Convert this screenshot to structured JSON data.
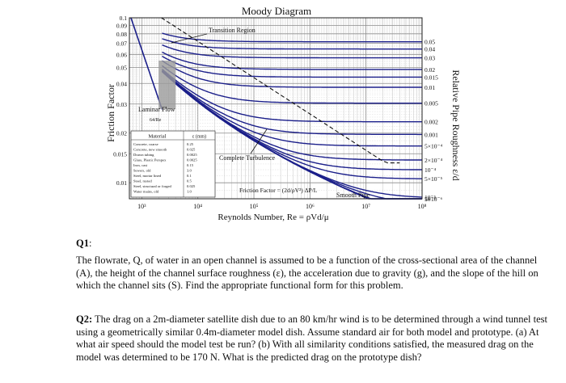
{
  "chart_data": {
    "type": "line",
    "title": "Moody Diagram",
    "xlabel": "Reynolds Number, Re = ρVd/μ",
    "ylabel": "Friction Factor",
    "right_label": "Relative Pipe Roughness ε/d",
    "x_scale": "log",
    "y_scale": "log",
    "xlim": [
      600,
      100000000
    ],
    "ylim": [
      0.008,
      0.1
    ],
    "x_ticks": [
      {
        "label": "10³",
        "value": 1000
      },
      {
        "label": "10⁴",
        "value": 10000
      },
      {
        "label": "10⁵",
        "value": 100000
      },
      {
        "label": "10⁶",
        "value": 1000000
      },
      {
        "label": "10⁷",
        "value": 10000000
      },
      {
        "label": "10⁸",
        "value": 100000000
      }
    ],
    "y_ticks": [
      {
        "label": "0.1",
        "value": 0.1
      },
      {
        "label": "0.09",
        "value": 0.09
      },
      {
        "label": "0.08",
        "value": 0.08
      },
      {
        "label": "0.07",
        "value": 0.07
      },
      {
        "label": "0.06",
        "value": 0.06
      },
      {
        "label": "0.05",
        "value": 0.05
      },
      {
        "label": "0.04",
        "value": 0.04
      },
      {
        "label": "0.03",
        "value": 0.03
      },
      {
        "label": "0.02",
        "value": 0.02
      },
      {
        "label": "0.015",
        "value": 0.015
      },
      {
        "label": "0.01",
        "value": 0.01
      }
    ],
    "series": [
      {
        "roughness": 0.05,
        "label": "0.05"
      },
      {
        "roughness": 0.04,
        "label": "0.04"
      },
      {
        "roughness": 0.03,
        "label": "0.03"
      },
      {
        "roughness": 0.02,
        "label": "0.02"
      },
      {
        "roughness": 0.015,
        "label": "0.015"
      },
      {
        "roughness": 0.01,
        "label": "0.01"
      },
      {
        "roughness": 0.005,
        "label": "0.005"
      },
      {
        "roughness": 0.002,
        "label": "0.002"
      },
      {
        "roughness": 0.001,
        "label": "0.001"
      },
      {
        "roughness": 0.0005,
        "label": "5×10⁻⁴"
      },
      {
        "roughness": 0.0002,
        "label": "2×10⁻⁴"
      },
      {
        "roughness": 0.0001,
        "label": "10⁻⁴"
      },
      {
        "roughness": 5e-05,
        "label": "5×10⁻⁵"
      },
      {
        "roughness": 1e-05,
        "label": "10⁻⁵"
      },
      {
        "roughness": 5e-06,
        "label": "5×10⁻⁶"
      },
      {
        "roughness": 1e-06,
        "label": "10⁻⁶"
      },
      {
        "roughness": 0,
        "label": "Smooth Pipe"
      }
    ],
    "annotations": {
      "transition": "Transition Region",
      "laminar": "Laminar Flow",
      "laminar_formula": "64/Re",
      "complete_turbulence": "Complete Turbulence",
      "friction_factor": "Friction Factor = (2d/ρV²) ΔP/L",
      "smooth_pipe": "Smooth Pipe"
    },
    "material_table": {
      "headers": [
        "Material",
        "ε (mm)"
      ],
      "rows": [
        [
          "Concrete, coarse",
          "0.25"
        ],
        [
          "Concrete, new smooth",
          "0.025"
        ],
        [
          "Drawn tubing",
          "0.0025"
        ],
        [
          "Glass, Plastic Perspex",
          "0.0025"
        ],
        [
          "Iron, cast",
          "0.15"
        ],
        [
          "Sewers, old",
          "3.0"
        ],
        [
          "Steel, mortar lined",
          "0.1"
        ],
        [
          "Steel, rusted",
          "0.5"
        ],
        [
          "Steel, structural or forged",
          "0.025"
        ],
        [
          "Water mains, old",
          "1.0"
        ]
      ]
    }
  },
  "questions": {
    "q1_label": "Q1",
    "q1_label_suffix": ":",
    "q1_text": "The flowrate, Q, of water in an open channel is assumed to be a function of the cross-sectional area of the channel (A), the height of the channel surface roughness (ε), the acceleration due to gravity (g), and the slope of the hill on which the channel sits (S). Find the appropriate functional form for this problem.",
    "q2_label": "Q2:",
    "q2_text": "The drag on a 2m-diameter satellite dish due to an 80 km/hr wind is to be determined through a wind tunnel test using a geometrically similar 0.4m-diameter model dish. Assume standard air for both model and prototype. (a) At what air speed should the model test be run? (b) With all similarity conditions satisfied, the measured drag on the model was determined to be 170 N. What is the predicted drag on the prototype dish?"
  }
}
